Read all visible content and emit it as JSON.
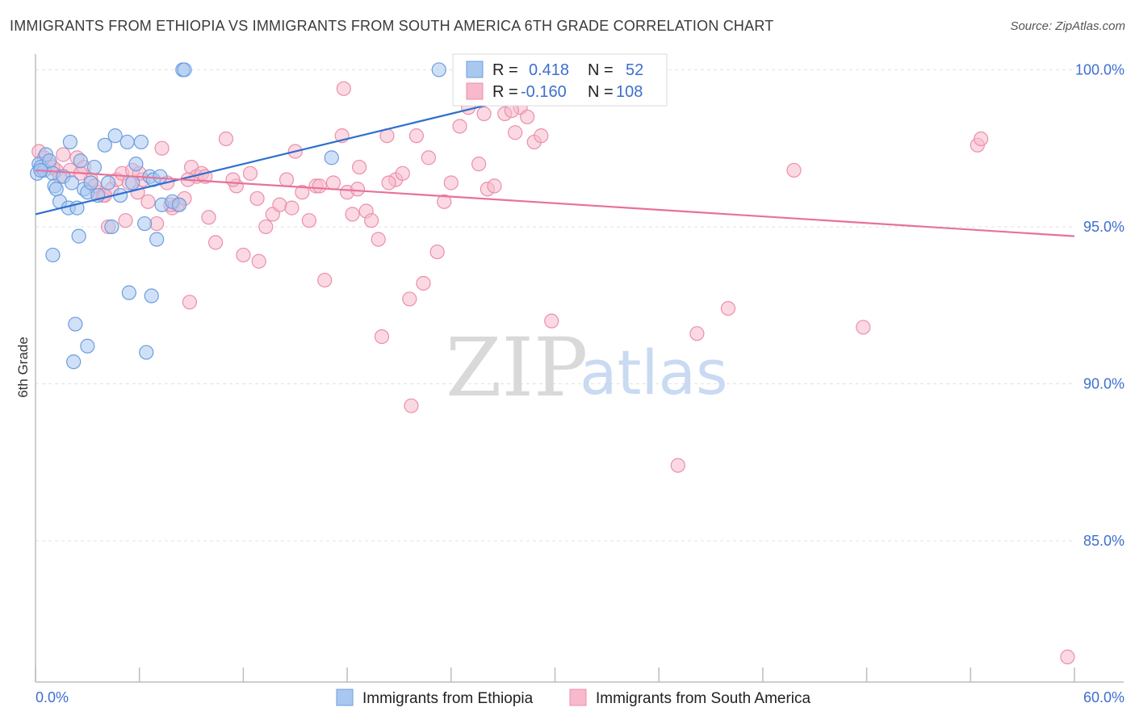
{
  "title": "IMMIGRANTS FROM ETHIOPIA VS IMMIGRANTS FROM SOUTH AMERICA 6TH GRADE CORRELATION CHART",
  "source": "Source: ZipAtlas.com",
  "watermark": {
    "zip": "ZIP",
    "atlas": "atlas"
  },
  "colors": {
    "blue_fill": "#a9c8f0",
    "blue_stroke": "#6c9de0",
    "blue_line": "#2f6fd0",
    "pink_fill": "#f7b9cb",
    "pink_stroke": "#eb8fac",
    "pink_line": "#e8719a",
    "tick_text": "#3d6fcf",
    "grid": "#e2e2e2"
  },
  "legend_box": {
    "rows": [
      {
        "r_label": "R =",
        "r_value": "0.418",
        "n_label": "N =",
        "n_value": "52"
      },
      {
        "r_label": "R =",
        "r_value": "-0.160",
        "n_label": "N =",
        "n_value": "108"
      }
    ]
  },
  "chart_data": {
    "type": "scatter",
    "title": "IMMIGRANTS FROM ETHIOPIA VS IMMIGRANTS FROM SOUTH AMERICA 6TH GRADE CORRELATION CHART",
    "xlabel": "",
    "ylabel": "6th Grade",
    "xlim": [
      0,
      60
    ],
    "ylim": [
      80.5,
      100.5
    ],
    "x_tick_labels": [
      "0.0%",
      "60.0%"
    ],
    "y_ticks": [
      85,
      90,
      95,
      100
    ],
    "y_tick_labels": [
      "85.0%",
      "90.0%",
      "95.0%",
      "100.0%"
    ],
    "x_minor_ticks": [
      0,
      6,
      12,
      18,
      24,
      30,
      36,
      42,
      48,
      54,
      60
    ],
    "grid": true,
    "legend_position": "bottom-center",
    "series": [
      {
        "name": "Immigrants from Ethiopia",
        "color": "#a9c8f0",
        "R": 0.418,
        "N": 52,
        "trend": {
          "x": [
            0,
            34.5
          ],
          "y": [
            95.4,
            100.0
          ]
        },
        "points": [
          [
            0.1,
            96.7
          ],
          [
            0.2,
            97.0
          ],
          [
            0.3,
            96.9
          ],
          [
            0.5,
            96.8
          ],
          [
            0.6,
            97.3
          ],
          [
            0.8,
            97.1
          ],
          [
            1.0,
            96.7
          ],
          [
            1.1,
            96.3
          ],
          [
            1.2,
            96.2
          ],
          [
            1.4,
            95.8
          ],
          [
            1.6,
            96.6
          ],
          [
            1.9,
            95.6
          ],
          [
            2.0,
            97.7
          ],
          [
            2.1,
            96.4
          ],
          [
            2.4,
            95.6
          ],
          [
            2.5,
            94.7
          ],
          [
            2.6,
            97.1
          ],
          [
            2.8,
            96.2
          ],
          [
            3.0,
            96.1
          ],
          [
            3.2,
            96.4
          ],
          [
            3.4,
            96.9
          ],
          [
            3.6,
            96.0
          ],
          [
            4.0,
            97.6
          ],
          [
            4.2,
            96.4
          ],
          [
            4.4,
            95.0
          ],
          [
            4.6,
            97.9
          ],
          [
            4.9,
            96.0
          ],
          [
            5.3,
            97.7
          ],
          [
            5.6,
            96.4
          ],
          [
            5.8,
            97.0
          ],
          [
            6.1,
            97.7
          ],
          [
            6.3,
            95.1
          ],
          [
            6.6,
            96.6
          ],
          [
            6.8,
            96.5
          ],
          [
            7.0,
            94.6
          ],
          [
            7.2,
            96.6
          ],
          [
            7.3,
            95.7
          ],
          [
            7.9,
            95.8
          ],
          [
            8.3,
            95.7
          ],
          [
            8.5,
            100.0
          ],
          [
            8.6,
            100.0
          ],
          [
            1.0,
            94.1
          ],
          [
            2.3,
            91.9
          ],
          [
            3.0,
            91.2
          ],
          [
            2.2,
            90.7
          ],
          [
            5.4,
            92.9
          ],
          [
            6.7,
            92.8
          ],
          [
            6.4,
            91.0
          ],
          [
            17.1,
            97.2
          ],
          [
            23.3,
            100.0
          ],
          [
            34.5,
            100.0
          ],
          [
            0.3,
            96.8
          ]
        ]
      },
      {
        "name": "Immigrants from South America",
        "color": "#f7b9cb",
        "R": -0.16,
        "N": 108,
        "trend": {
          "x": [
            0,
            60
          ],
          "y": [
            96.8,
            94.7
          ]
        },
        "points": [
          [
            0.2,
            97.4
          ],
          [
            0.5,
            97.2
          ],
          [
            0.8,
            97.0
          ],
          [
            1.2,
            96.8
          ],
          [
            1.6,
            97.3
          ],
          [
            2.0,
            96.8
          ],
          [
            2.4,
            97.2
          ],
          [
            2.8,
            96.9
          ],
          [
            3.2,
            96.5
          ],
          [
            3.6,
            96.1
          ],
          [
            3.9,
            96.0
          ],
          [
            4.2,
            95.0
          ],
          [
            4.4,
            96.2
          ],
          [
            4.7,
            96.5
          ],
          [
            5.0,
            96.7
          ],
          [
            5.2,
            95.2
          ],
          [
            5.6,
            96.8
          ],
          [
            5.9,
            96.1
          ],
          [
            6.2,
            96.5
          ],
          [
            6.5,
            95.8
          ],
          [
            7.0,
            95.1
          ],
          [
            7.3,
            97.5
          ],
          [
            7.6,
            96.4
          ],
          [
            7.9,
            95.6
          ],
          [
            8.2,
            95.7
          ],
          [
            8.6,
            95.9
          ],
          [
            9.0,
            96.9
          ],
          [
            9.3,
            96.6
          ],
          [
            9.6,
            96.7
          ],
          [
            10.0,
            95.3
          ],
          [
            10.4,
            94.5
          ],
          [
            11.0,
            97.8
          ],
          [
            11.6,
            96.3
          ],
          [
            12.0,
            94.1
          ],
          [
            12.4,
            96.7
          ],
          [
            12.9,
            93.9
          ],
          [
            13.3,
            95.0
          ],
          [
            13.7,
            95.4
          ],
          [
            14.1,
            95.7
          ],
          [
            14.5,
            96.5
          ],
          [
            15.0,
            97.4
          ],
          [
            15.4,
            96.1
          ],
          [
            15.8,
            95.2
          ],
          [
            16.2,
            96.3
          ],
          [
            16.7,
            93.3
          ],
          [
            17.2,
            96.4
          ],
          [
            17.7,
            97.9
          ],
          [
            18.0,
            96.1
          ],
          [
            18.3,
            95.4
          ],
          [
            18.7,
            96.9
          ],
          [
            19.1,
            95.5
          ],
          [
            19.4,
            95.2
          ],
          [
            19.8,
            94.6
          ],
          [
            20.3,
            97.9
          ],
          [
            20.8,
            96.5
          ],
          [
            21.2,
            96.7
          ],
          [
            21.6,
            92.7
          ],
          [
            22.0,
            97.9
          ],
          [
            22.4,
            93.2
          ],
          [
            22.7,
            97.2
          ],
          [
            23.2,
            94.2
          ],
          [
            23.6,
            95.8
          ],
          [
            24.0,
            96.4
          ],
          [
            24.5,
            98.2
          ],
          [
            25.0,
            98.8
          ],
          [
            25.6,
            97.0
          ],
          [
            26.1,
            96.2
          ],
          [
            26.5,
            96.3
          ],
          [
            27.1,
            98.6
          ],
          [
            27.7,
            98.0
          ],
          [
            28.0,
            98.8
          ],
          [
            28.4,
            98.5
          ],
          [
            28.8,
            97.7
          ],
          [
            29.2,
            97.9
          ],
          [
            20.0,
            91.5
          ],
          [
            17.8,
            99.4
          ],
          [
            8.9,
            92.6
          ],
          [
            29.8,
            92.0
          ],
          [
            38.2,
            91.6
          ],
          [
            40.0,
            92.4
          ],
          [
            47.8,
            91.8
          ],
          [
            43.8,
            96.8
          ],
          [
            54.4,
            97.6
          ],
          [
            54.6,
            97.8
          ],
          [
            37.1,
            87.4
          ],
          [
            21.7,
            89.3
          ],
          [
            59.6,
            81.3
          ],
          [
            35.7,
            99.5
          ],
          [
            34.3,
            99.9
          ],
          [
            32.1,
            99.9
          ],
          [
            27.5,
            98.7
          ],
          [
            25.9,
            98.6
          ],
          [
            1.0,
            96.9
          ],
          [
            1.4,
            96.6
          ],
          [
            2.6,
            96.7
          ],
          [
            3.4,
            96.3
          ],
          [
            4.0,
            96.0
          ],
          [
            5.4,
            96.4
          ],
          [
            6.0,
            96.7
          ],
          [
            7.8,
            95.7
          ],
          [
            8.8,
            96.5
          ],
          [
            9.8,
            96.6
          ],
          [
            11.4,
            96.5
          ],
          [
            12.8,
            95.9
          ],
          [
            14.8,
            95.6
          ],
          [
            16.4,
            96.3
          ],
          [
            18.6,
            96.2
          ],
          [
            20.4,
            96.4
          ]
        ]
      }
    ]
  }
}
